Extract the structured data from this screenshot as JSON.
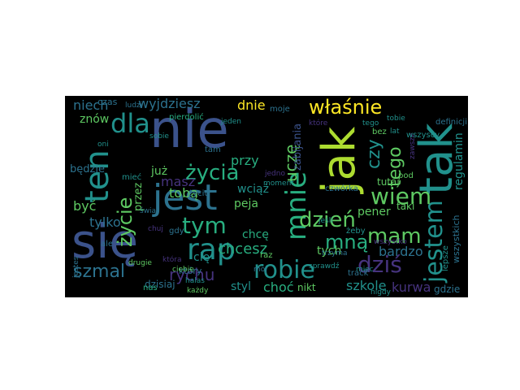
{
  "palette": {
    "background": "#000000",
    "colors": [
      "#3b528b",
      "#46337e",
      "#2c728e",
      "#21918c",
      "#28ae80",
      "#5ec962",
      "#addc30",
      "#fde725",
      "#440154"
    ]
  },
  "words": [
    {
      "text": "nie",
      "color": "#3b528b"
    },
    {
      "text": "się",
      "color": "#3b528b"
    },
    {
      "text": "jak",
      "color": "#addc30"
    },
    {
      "text": "tak",
      "color": "#21918c"
    },
    {
      "text": "jest",
      "color": "#2c728e"
    },
    {
      "text": "ten",
      "color": "#21918c"
    },
    {
      "text": "dla",
      "color": "#21918c"
    },
    {
      "text": "rap",
      "color": "#21918c"
    },
    {
      "text": "mnie",
      "color": "#28ae80"
    },
    {
      "text": "życia",
      "color": "#28ae80"
    },
    {
      "text": "tym",
      "color": "#28ae80"
    },
    {
      "text": "robie",
      "color": "#21918c"
    },
    {
      "text": "dziś",
      "color": "#46337e"
    },
    {
      "text": "jestem",
      "color": "#21918c"
    },
    {
      "text": "właśnie",
      "color": "#fde725"
    },
    {
      "text": "wiem",
      "color": "#5ec962"
    },
    {
      "text": "dzień",
      "color": "#5ec962"
    },
    {
      "text": "mam",
      "color": "#5ec962"
    },
    {
      "text": "mną",
      "color": "#28ae80"
    },
    {
      "text": "czy",
      "color": "#21918c"
    },
    {
      "text": "tego",
      "color": "#5ec962"
    },
    {
      "text": "życie",
      "color": "#5ec962"
    },
    {
      "text": "uczę",
      "color": "#5ec962"
    },
    {
      "text": "szmal",
      "color": "#2c728e"
    },
    {
      "text": "rychu",
      "color": "#46337e"
    },
    {
      "text": "chcesz",
      "color": "#28ae80"
    },
    {
      "text": "choć",
      "color": "#28ae80"
    },
    {
      "text": "szkole",
      "color": "#21918c"
    },
    {
      "text": "kurwa",
      "color": "#46337e"
    },
    {
      "text": "regulamin",
      "color": "#21918c"
    },
    {
      "text": "bardzo",
      "color": "#2c728e"
    },
    {
      "text": "wyjdziesz",
      "color": "#2c728e"
    },
    {
      "text": "niech",
      "color": "#2c728e"
    },
    {
      "text": "dnie",
      "color": "#fde725"
    },
    {
      "text": "znów",
      "color": "#5ec962"
    },
    {
      "text": "być",
      "color": "#5ec962"
    },
    {
      "text": "tylko",
      "color": "#2c728e"
    },
    {
      "text": "już",
      "color": "#5ec962"
    },
    {
      "text": "masz",
      "color": "#46337e"
    },
    {
      "text": "wciąż",
      "color": "#21918c"
    },
    {
      "text": "przy",
      "color": "#28ae80"
    },
    {
      "text": "tobą",
      "color": "#5ec962"
    },
    {
      "text": "peja",
      "color": "#5ec962"
    },
    {
      "text": "pener",
      "color": "#5ec962"
    },
    {
      "text": "tych",
      "color": "#5ec962"
    },
    {
      "text": "zabijania",
      "color": "#3b528b"
    },
    {
      "text": "przez",
      "color": "#5ec962"
    },
    {
      "text": "będzie",
      "color": "#2c728e"
    },
    {
      "text": "czas",
      "color": "#2c728e"
    },
    {
      "text": "pierdolić",
      "color": "#28ae80"
    },
    {
      "text": "cię",
      "color": "#21918c"
    },
    {
      "text": "chcę",
      "color": "#28ae80"
    },
    {
      "text": "styl",
      "color": "#21918c"
    },
    {
      "text": "tutaj",
      "color": "#5ec962"
    },
    {
      "text": "dzisiaj",
      "color": "#2c728e"
    },
    {
      "text": "który",
      "color": "#2c728e"
    },
    {
      "text": "taki",
      "color": "#5ec962"
    },
    {
      "text": "nikt",
      "color": "#5ec962"
    },
    {
      "text": "wszystkich",
      "color": "#2c728e"
    },
    {
      "text": "lepsze",
      "color": "#21918c"
    },
    {
      "text": "gdzie",
      "color": "#2c728e"
    },
    {
      "text": "moje",
      "color": "#2c728e"
    },
    {
      "text": "nas",
      "color": "#28ae80"
    },
    {
      "text": "każdy",
      "color": "#5ec962"
    },
    {
      "text": "halas",
      "color": "#21918c"
    },
    {
      "text": "drugie",
      "color": "#5ec962"
    },
    {
      "text": "ciebie",
      "color": "#5ec962"
    },
    {
      "text": "moj",
      "color": "#2c728e"
    },
    {
      "text": "raz",
      "color": "#5ec962"
    },
    {
      "text": "żeby",
      "color": "#21918c"
    },
    {
      "text": "czwórka",
      "color": "#2c728e"
    },
    {
      "text": "tam",
      "color": "#2c728e"
    },
    {
      "text": "gdy",
      "color": "#2c728e"
    },
    {
      "text": "życiu",
      "color": "#2c728e"
    },
    {
      "text": "definicji",
      "color": "#2c728e"
    },
    {
      "text": "pod",
      "color": "#5ec962"
    },
    {
      "text": "bez",
      "color": "#5ec962"
    },
    {
      "text": "które",
      "color": "#46337e"
    },
    {
      "text": "zawsze",
      "color": "#46337e"
    },
    {
      "text": "wszyscy",
      "color": "#21918c"
    },
    {
      "text": "track",
      "color": "#2c728e"
    },
    {
      "text": "nigdy",
      "color": "#21918c"
    },
    {
      "text": "sobie",
      "color": "#21918c"
    },
    {
      "text": "mieć",
      "color": "#21918c"
    },
    {
      "text": "ale",
      "color": "#2c728e"
    },
    {
      "text": "świat",
      "color": "#2c728e"
    },
    {
      "text": "chuj",
      "color": "#46337e"
    },
    {
      "text": "jeden",
      "color": "#21918c"
    },
    {
      "text": "wszystko",
      "color": "#46337e"
    },
    {
      "text": "moment",
      "color": "#21918c"
    },
    {
      "text": "jeśli",
      "color": "#21918c"
    },
    {
      "text": "trzyma",
      "color": "#2c728e"
    },
    {
      "text": "sprawdź",
      "color": "#21918c"
    },
    {
      "text": "miec",
      "color": "#21918c"
    },
    {
      "text": "lat",
      "color": "#21918c"
    },
    {
      "text": "tobie",
      "color": "#21918c"
    },
    {
      "text": "ludzi",
      "color": "#2c728e"
    },
    {
      "text": "oni",
      "color": "#21918c"
    },
    {
      "text": "jedno",
      "color": "#46337e"
    },
    {
      "text": "która",
      "color": "#46337e"
    },
    {
      "text": "tego",
      "color": "#21918c"
    },
    {
      "text": "jestes",
      "color": "#2c728e"
    }
  ]
}
